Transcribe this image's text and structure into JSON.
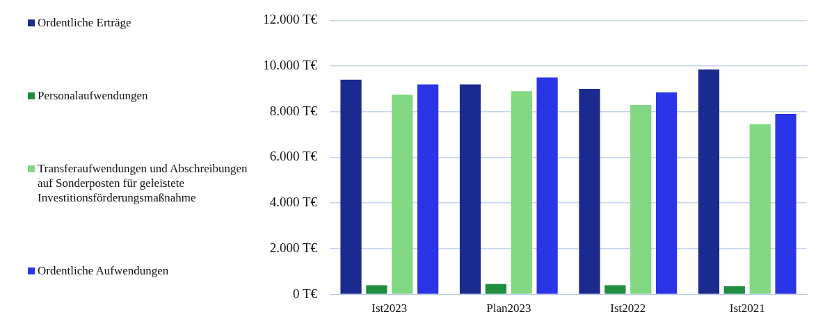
{
  "chart_data": {
    "type": "bar",
    "categories": [
      "Ist2023",
      "Plan2023",
      "Ist2022",
      "Ist2021"
    ],
    "series": [
      {
        "name": "Ordentliche Erträge",
        "color": "#1b2a8e",
        "values": [
          9400,
          9200,
          9000,
          9850
        ]
      },
      {
        "name": "Personalaufwendungen",
        "color": "#1f8f3f",
        "values": [
          400,
          450,
          400,
          350
        ]
      },
      {
        "name": "Transferaufwendungen und Abschreibungen auf Sonderposten für geleistete Investitionsförderungsmaßnahme",
        "color": "#82d882",
        "values": [
          8750,
          8900,
          8300,
          7450
        ]
      },
      {
        "name": "Ordentliche Aufwendungen",
        "color": "#2b35e8",
        "values": [
          9200,
          9500,
          8850,
          7900
        ]
      }
    ],
    "ylim": [
      0,
      12000
    ],
    "yticks": [
      {
        "value": 0,
        "label": "0 T€"
      },
      {
        "value": 2000,
        "label": "2.000 T€"
      },
      {
        "value": 4000,
        "label": "4.000 T€"
      },
      {
        "value": 6000,
        "label": "6.000 T€"
      },
      {
        "value": 8000,
        "label": "8.000 T€"
      },
      {
        "value": 10000,
        "label": "10.000 T€"
      },
      {
        "value": 12000,
        "label": "12.000 T€"
      }
    ],
    "grid": "y",
    "legend": "left"
  }
}
